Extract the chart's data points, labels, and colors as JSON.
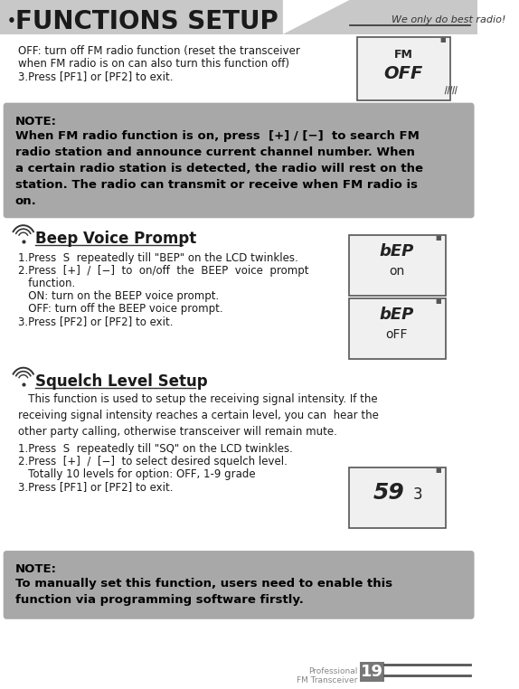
{
  "title": "FUNCTIONS SETUP",
  "title_bullet": "•",
  "tagline": "We only do best radio!",
  "bg_color": "#ffffff",
  "header_bg": "#c8c8c8",
  "note_bg": "#a8a8a8",
  "note_bg2": "#a8a8a8",
  "section_underline": "#333333",
  "text_color": "#1a1a1a",
  "bold_text": "#000000",
  "footer_text_color": "#888888",
  "page_number": "19",
  "footer_left": "Professional\nFM Transceiver",
  "body_lines_top": [
    "OFF: turn off FM radio function (reset the transceiver",
    "when FM radio is on can also turn this function off)",
    "3.Press [PF1] or [PF2] to exit."
  ],
  "note1_title": "NOTE:",
  "note1_body": "When FM radio function is on, press  [+] / [−]  to search FM\nradio station and announce current channel number. When\na certain radio station is detected, the radio will rest on the\nstation. The radio can transmit or receive when FM radio is\non.",
  "section2_title": "Beep Voice Prompt",
  "section2_lines": [
    "1.Press  S  repeatedly till \"BEP\" on the LCD twinkles.",
    "2.Press  [+]  /  [−]  to  on/off  the  BEEP  voice  prompt",
    "   function.",
    "   ON: turn on the BEEP voice prompt.",
    "   OFF: turn off the BEEP voice prompt.",
    "3.Press [PF2] or [PF2] to exit."
  ],
  "section3_title": "Squelch Level Setup",
  "section3_intro": "   This function is used to setup the receiving signal intensity. If the\nreceiving signal intensity reaches a certain level, you can  hear the\nother party calling, otherwise transceiver will remain mute.",
  "section3_lines": [
    "1.Press  S  repeatedly till \"SQ\" on the LCD twinkles.",
    "2.Press  [+]  /  [−]  to select desired squelch level.",
    "   Totally 10 levels for option: OFF, 1-9 grade",
    "3.Press [PF1] or [PF2] to exit."
  ],
  "note2_title": "NOTE:",
  "note2_body": "To manually set this function, users need to enable this\nfunction via programming software firstly."
}
